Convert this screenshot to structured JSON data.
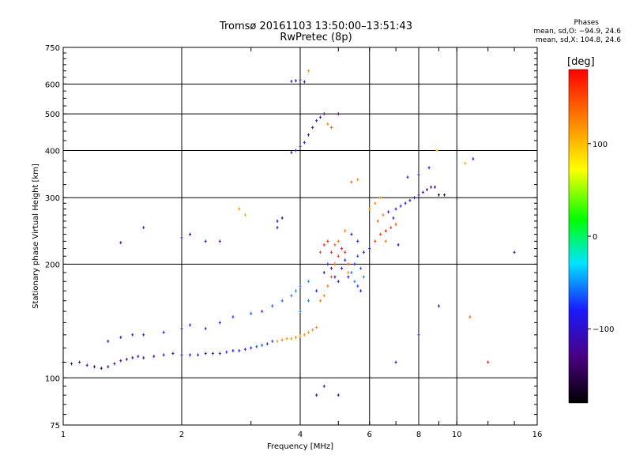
{
  "window": {
    "title": "Tromsø 20161103 13:50:00–13:51:43",
    "subtitle": "RwPretec (8p)"
  },
  "phase_box": {
    "label": "Phases",
    "o_line": "mean, sd,O: −94.9, 24.6",
    "x_line": "mean, sd,X: 104.8, 24.6"
  },
  "colorbar": {
    "unit_label": "[deg]",
    "ticks": [
      {
        "value": 100,
        "label": "100"
      },
      {
        "value": 0,
        "label": "0"
      },
      {
        "value": -100,
        "label": "−100"
      }
    ],
    "range": [
      -180,
      180
    ],
    "colors": [
      "#000000",
      "#4b0082",
      "#1a1aff",
      "#00e5ff",
      "#00ff00",
      "#ffff00",
      "#ff8000",
      "#ff0000"
    ]
  },
  "chart_data": {
    "type": "scatter",
    "title": "Tromsø 20161103 13:50:00–13:51:43",
    "subtitle": "RwPretec (8p)",
    "xlabel": "Frequency [MHz]",
    "ylabel": "Stationary phase Virtual Height [km]",
    "x_scale": "log",
    "y_scale": "log",
    "xlim": [
      1,
      16
    ],
    "ylim": [
      75,
      750
    ],
    "x_ticks": [
      1,
      2,
      4,
      6,
      8,
      10,
      16
    ],
    "y_ticks": [
      75,
      100,
      200,
      300,
      400,
      500,
      600,
      750
    ],
    "x_major_grid": [
      2,
      4,
      6,
      8,
      10
    ],
    "y_major_grid": [
      100,
      200,
      300,
      400,
      500,
      600
    ],
    "grid": true,
    "series": [
      {
        "color_by": "phase_deg",
        "points": [
          [
            1.0,
            110,
            -110
          ],
          [
            1.05,
            109,
            -120
          ],
          [
            1.1,
            110,
            -115
          ],
          [
            1.15,
            108,
            -125
          ],
          [
            1.2,
            107,
            -140
          ],
          [
            1.25,
            106,
            -150
          ],
          [
            1.3,
            107,
            -145
          ],
          [
            1.35,
            109,
            -140
          ],
          [
            1.4,
            111,
            -130
          ],
          [
            1.45,
            112,
            -120
          ],
          [
            1.5,
            113,
            -115
          ],
          [
            1.55,
            114,
            -110
          ],
          [
            1.6,
            113,
            -115
          ],
          [
            1.7,
            114,
            -120
          ],
          [
            1.8,
            115,
            -110
          ],
          [
            1.9,
            116,
            -105
          ],
          [
            2.0,
            115,
            -110
          ],
          [
            2.1,
            115,
            -105
          ],
          [
            2.2,
            115,
            -100
          ],
          [
            2.3,
            116,
            -95
          ],
          [
            2.4,
            116,
            -90
          ],
          [
            2.5,
            116,
            -95
          ],
          [
            2.6,
            117,
            -90
          ],
          [
            2.7,
            118,
            -85
          ],
          [
            2.8,
            118,
            -80
          ],
          [
            2.9,
            119,
            -85
          ],
          [
            3.0,
            120,
            -80
          ],
          [
            3.1,
            121,
            -70
          ],
          [
            3.2,
            122,
            -65
          ],
          [
            3.3,
            123,
            -75
          ],
          [
            3.4,
            125,
            -70
          ],
          [
            3.5,
            125,
            120
          ],
          [
            3.6,
            126,
            125
          ],
          [
            3.7,
            127,
            120
          ],
          [
            3.8,
            127,
            118
          ],
          [
            3.9,
            128,
            122
          ],
          [
            4.0,
            129,
            125
          ],
          [
            4.1,
            130,
            120
          ],
          [
            4.2,
            132,
            115
          ],
          [
            4.3,
            134,
            118
          ],
          [
            4.4,
            136,
            122
          ],
          [
            1.3,
            125,
            -110
          ],
          [
            1.4,
            128,
            -105
          ],
          [
            1.5,
            130,
            -100
          ],
          [
            1.6,
            130,
            -100
          ],
          [
            1.8,
            132,
            -100
          ],
          [
            2.0,
            135,
            -95
          ],
          [
            2.1,
            138,
            -90
          ],
          [
            2.3,
            135,
            -85
          ],
          [
            2.5,
            140,
            -80
          ],
          [
            2.7,
            145,
            -75
          ],
          [
            3.0,
            148,
            -70
          ],
          [
            3.2,
            150,
            -75
          ],
          [
            3.4,
            155,
            -70
          ],
          [
            3.6,
            160,
            -60
          ],
          [
            3.8,
            165,
            -55
          ],
          [
            3.9,
            170,
            -50
          ],
          [
            4.0,
            175,
            -60
          ],
          [
            4.2,
            180,
            -45
          ],
          [
            4.4,
            170,
            -80
          ],
          [
            4.5,
            160,
            125
          ],
          [
            4.6,
            165,
            130
          ],
          [
            4.7,
            175,
            135
          ],
          [
            4.8,
            185,
            140
          ],
          [
            4.9,
            200,
            150
          ],
          [
            5.0,
            210,
            160
          ],
          [
            5.1,
            220,
            170
          ],
          [
            5.2,
            215,
            165
          ],
          [
            5.3,
            200,
            150
          ],
          [
            5.4,
            190,
            -60
          ],
          [
            5.5,
            180,
            -55
          ],
          [
            5.6,
            175,
            -70
          ],
          [
            5.7,
            170,
            -80
          ],
          [
            5.8,
            185,
            -50
          ],
          [
            4.6,
            190,
            -120
          ],
          [
            4.7,
            200,
            -110
          ],
          [
            4.8,
            195,
            -100
          ],
          [
            4.9,
            185,
            -105
          ],
          [
            5.0,
            180,
            -95
          ],
          [
            5.1,
            195,
            -90
          ],
          [
            5.2,
            205,
            -95
          ],
          [
            5.3,
            185,
            -100
          ],
          [
            5.5,
            200,
            -85
          ],
          [
            5.6,
            210,
            -70
          ],
          [
            5.7,
            195,
            -65
          ],
          [
            4.5,
            215,
            150
          ],
          [
            4.6,
            225,
            160
          ],
          [
            4.7,
            230,
            170
          ],
          [
            4.8,
            215,
            165
          ],
          [
            4.9,
            225,
            140
          ],
          [
            5.0,
            230,
            135
          ],
          [
            5.2,
            245,
            130
          ],
          [
            5.4,
            240,
            -120
          ],
          [
            5.6,
            230,
            -110
          ],
          [
            5.8,
            215,
            -100
          ],
          [
            6.0,
            220,
            -95
          ],
          [
            6.2,
            230,
            160
          ],
          [
            6.4,
            240,
            165
          ],
          [
            6.6,
            245,
            170
          ],
          [
            6.8,
            250,
            155
          ],
          [
            7.0,
            255,
            150
          ],
          [
            6.3,
            260,
            140
          ],
          [
            6.5,
            270,
            130
          ],
          [
            6.7,
            275,
            -110
          ],
          [
            6.9,
            265,
            -100
          ],
          [
            7.0,
            280,
            -90
          ],
          [
            7.2,
            285,
            -85
          ],
          [
            7.4,
            290,
            -95
          ],
          [
            7.6,
            295,
            -100
          ],
          [
            7.8,
            300,
            -110
          ],
          [
            8.0,
            305,
            -115
          ],
          [
            8.2,
            310,
            -120
          ],
          [
            8.4,
            315,
            -125
          ],
          [
            8.6,
            320,
            -130
          ],
          [
            8.8,
            320,
            -140
          ],
          [
            9.0,
            305,
            -150
          ],
          [
            9.3,
            305,
            -150
          ],
          [
            7.5,
            340,
            -100
          ],
          [
            8.0,
            345,
            -110
          ],
          [
            8.5,
            360,
            -105
          ],
          [
            6.0,
            280,
            120
          ],
          [
            6.2,
            290,
            125
          ],
          [
            6.4,
            300,
            110
          ],
          [
            5.4,
            330,
            140
          ],
          [
            5.6,
            335,
            125
          ],
          [
            3.5,
            250,
            -120
          ],
          [
            3.5,
            260,
            -110
          ],
          [
            3.6,
            265,
            -125
          ],
          [
            3.8,
            395,
            -100
          ],
          [
            3.9,
            400,
            -90
          ],
          [
            4.0,
            410,
            -95
          ],
          [
            4.1,
            420,
            -100
          ],
          [
            4.2,
            440,
            -110
          ],
          [
            4.3,
            460,
            -115
          ],
          [
            4.4,
            480,
            -100
          ],
          [
            4.5,
            490,
            -105
          ],
          [
            4.6,
            500,
            -110
          ],
          [
            4.7,
            470,
            130
          ],
          [
            4.8,
            460,
            140
          ],
          [
            5.0,
            500,
            -120
          ],
          [
            3.8,
            610,
            -100
          ],
          [
            3.9,
            612,
            -110
          ],
          [
            4.0,
            615,
            -95
          ],
          [
            4.1,
            608,
            -105
          ],
          [
            4.2,
            650,
            120
          ],
          [
            2.8,
            280,
            120
          ],
          [
            2.9,
            270,
            110
          ],
          [
            2.5,
            230,
            -120
          ],
          [
            2.3,
            230,
            -110
          ],
          [
            2.1,
            240,
            -125
          ],
          [
            2.0,
            235,
            -110
          ],
          [
            1.6,
            250,
            -100
          ],
          [
            1.4,
            228,
            -120
          ],
          [
            4.0,
            150,
            -60
          ],
          [
            4.2,
            160,
            -50
          ],
          [
            4.4,
            90,
            -130
          ],
          [
            5.0,
            90,
            -120
          ],
          [
            4.6,
            95,
            -110
          ],
          [
            7.0,
            110,
            -90
          ],
          [
            8.0,
            130,
            -80
          ],
          [
            9.0,
            155,
            -100
          ],
          [
            10.5,
            370,
            110
          ],
          [
            11.0,
            380,
            -120
          ],
          [
            12.0,
            110,
            170
          ],
          [
            14.0,
            215,
            -120
          ],
          [
            10.8,
            145,
            140
          ],
          [
            5.3,
            190,
            120
          ],
          [
            6.6,
            230,
            135
          ],
          [
            7.1,
            225,
            -90
          ],
          [
            8.9,
            400,
            100
          ]
        ]
      }
    ]
  }
}
